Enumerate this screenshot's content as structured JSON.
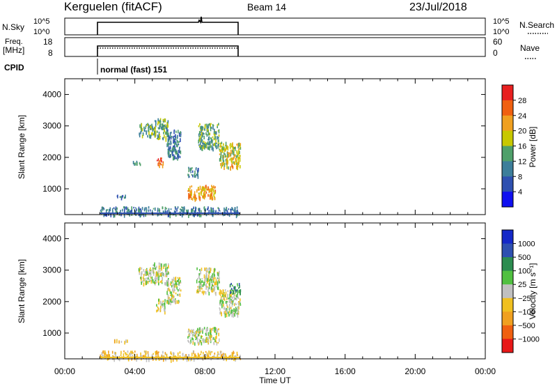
{
  "header": {
    "station": "Kerguelen (fitACF)",
    "beam": "Beam 14",
    "date": "23/Jul/2018"
  },
  "parameters": {
    "nsky_label": "N.Sky",
    "nsky_ticks": [
      "10^5",
      "10^0"
    ],
    "nsearch_label": "N.Search",
    "freq_label_line1": "Freq.",
    "freq_label_line2": "[MHz]",
    "freq_ticks": [
      "18",
      "8"
    ],
    "nave_label": "Nave",
    "nave_ticks": [
      "60",
      "0"
    ],
    "cpid_label": "CPID",
    "cpid_value": "normal (fast) 151"
  },
  "x_axis": {
    "label": "Time UT",
    "ticks": [
      "00:00",
      "04:00",
      "08:00",
      "12:00",
      "16:00",
      "20:00",
      "00:00"
    ],
    "range_hours": [
      0,
      24
    ]
  },
  "chart_data": [
    {
      "type": "heatmap",
      "name": "power",
      "ylabel": "Slant Range [km]",
      "yticks": [
        "1000",
        "2000",
        "3000",
        "4000"
      ],
      "ylim": [
        180,
        4500
      ],
      "xlim_hours": [
        0,
        24
      ],
      "colorbar": {
        "label": "Power [dB]",
        "ticks": [
          "4",
          "8",
          "12",
          "16",
          "20",
          "24",
          "28"
        ],
        "colors": [
          "#1010f0",
          "#2e50b0",
          "#3c7e9a",
          "#4fa06a",
          "#c8c800",
          "#f0a020",
          "#f06010",
          "#e82020"
        ]
      },
      "data_extent_hours": [
        2.0,
        10.0
      ],
      "regions": [
        {
          "t": [
            2.0,
            10.0
          ],
          "range": [
            180,
            450
          ],
          "level": 2
        },
        {
          "t": [
            2.9,
            3.7
          ],
          "range": [
            750,
            820
          ],
          "level": 2
        },
        {
          "t": [
            3.8,
            4.3
          ],
          "range": [
            1800,
            1900
          ],
          "level": 2
        },
        {
          "t": [
            4.2,
            5.0
          ],
          "range": [
            2700,
            3100
          ],
          "level": 3
        },
        {
          "t": [
            5.0,
            5.9
          ],
          "range": [
            2600,
            3250
          ],
          "level": 3
        },
        {
          "t": [
            5.2,
            5.6
          ],
          "range": [
            1750,
            2000
          ],
          "level": 6
        },
        {
          "t": [
            5.8,
            6.6
          ],
          "range": [
            2000,
            2900
          ],
          "level": 2
        },
        {
          "t": [
            7.0,
            7.6
          ],
          "range": [
            1400,
            1700
          ],
          "level": 2
        },
        {
          "t": [
            7.0,
            8.6
          ],
          "range": [
            700,
            1150
          ],
          "level": 5
        },
        {
          "t": [
            7.6,
            8.8
          ],
          "range": [
            2300,
            3100
          ],
          "level": 3
        },
        {
          "t": [
            8.8,
            10.0
          ],
          "range": [
            1700,
            2500
          ],
          "level": 4
        },
        {
          "t": [
            9.5,
            9.9
          ],
          "range": [
            1700,
            1800
          ],
          "level": 5
        }
      ]
    },
    {
      "type": "heatmap",
      "name": "velocity",
      "ylabel": "Slant Range [km]",
      "yticks": [
        "1000",
        "2000",
        "3000",
        "4000"
      ],
      "ylim": [
        180,
        4500
      ],
      "xlim_hours": [
        0,
        24
      ],
      "colorbar": {
        "label": "Velocity [m s⁻¹]",
        "ticks": [
          "1000",
          "500",
          "100",
          "25",
          "−25",
          "−100",
          "−500",
          "−1000"
        ],
        "colors": [
          "#1428c8",
          "#2e50b0",
          "#2c8c50",
          "#50c040",
          "#c0c0c0",
          "#f0c020",
          "#f0a020",
          "#f06010",
          "#e81818"
        ]
      },
      "data_extent_hours": [
        2.0,
        10.0
      ],
      "regions": [
        {
          "t": [
            2.0,
            10.0
          ],
          "range": [
            180,
            450
          ],
          "level": 5
        },
        {
          "t": [
            2.8,
            3.6
          ],
          "range": [
            750,
            820
          ],
          "level": 5
        },
        {
          "t": [
            4.2,
            5.0
          ],
          "range": [
            2600,
            3100
          ],
          "level": 4
        },
        {
          "t": [
            5.0,
            5.9
          ],
          "range": [
            2600,
            3250
          ],
          "level": 4
        },
        {
          "t": [
            5.2,
            5.7
          ],
          "range": [
            1700,
            2100
          ],
          "level": 4
        },
        {
          "t": [
            5.8,
            6.6
          ],
          "range": [
            2000,
            2800
          ],
          "level": 4
        },
        {
          "t": [
            7.0,
            8.8
          ],
          "range": [
            700,
            1200
          ],
          "level": 4
        },
        {
          "t": [
            7.5,
            8.8
          ],
          "range": [
            2300,
            3100
          ],
          "level": 4
        },
        {
          "t": [
            8.8,
            10.0
          ],
          "range": [
            1600,
            2400
          ],
          "level": 4
        },
        {
          "t": [
            9.4,
            10.0
          ],
          "range": [
            2300,
            2600
          ],
          "level": 2
        }
      ]
    }
  ]
}
